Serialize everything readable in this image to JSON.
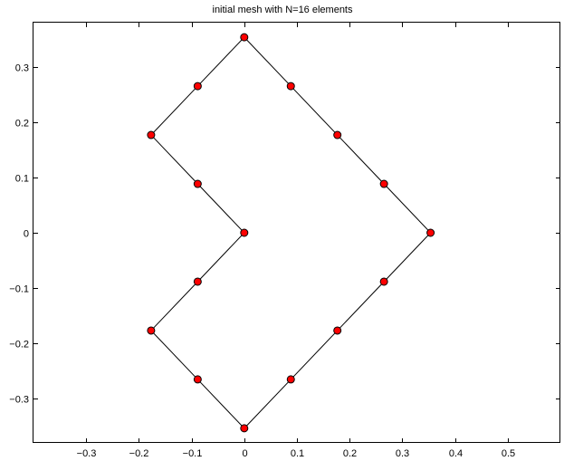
{
  "chart_data": {
    "type": "line",
    "title": "initial mesh with N=16 elements",
    "xlabel": "",
    "ylabel": "",
    "xlim": [
      -0.4,
      0.6
    ],
    "ylim": [
      -0.38,
      0.38
    ],
    "xticks": [
      -0.3,
      -0.2,
      -0.1,
      0,
      0.1,
      0.2,
      0.3,
      0.4,
      0.5
    ],
    "xtick_labels": [
      "−0.3",
      "−0.2",
      "−0.1",
      "0",
      "0.1",
      "0.2",
      "0.3",
      "0.4",
      "0.5"
    ],
    "yticks": [
      -0.3,
      -0.2,
      -0.1,
      0,
      0.1,
      0.2,
      0.3
    ],
    "ytick_labels": [
      "−0.3",
      "−0.2",
      "−0.1",
      "0",
      "0.1",
      "0.2",
      "0.3"
    ],
    "grid": false,
    "series": [
      {
        "closed": true,
        "line_color": "#000000",
        "marker_color": "#ff0000",
        "points": [
          [
            0,
            0.3536
          ],
          [
            0.0884,
            0.2652
          ],
          [
            0.1768,
            0.1768
          ],
          [
            0.2652,
            0.0884
          ],
          [
            0.3536,
            0
          ],
          [
            0.2652,
            -0.0884
          ],
          [
            0.1768,
            -0.1768
          ],
          [
            0.0884,
            -0.2652
          ],
          [
            0,
            -0.3536
          ],
          [
            -0.0884,
            -0.2652
          ],
          [
            -0.1768,
            -0.1768
          ],
          [
            -0.0884,
            -0.0884
          ],
          [
            0,
            0
          ],
          [
            -0.0884,
            0.0884
          ],
          [
            -0.1768,
            0.1768
          ],
          [
            -0.0884,
            0.2652
          ]
        ]
      }
    ]
  }
}
